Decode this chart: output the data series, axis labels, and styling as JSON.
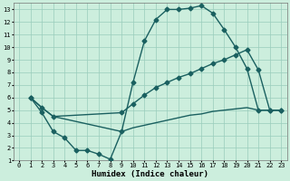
{
  "xlabel": "Humidex (Indice chaleur)",
  "background_color": "#cceedd",
  "grid_color": "#99ccbb",
  "line_color": "#1a6060",
  "xlim": [
    -0.5,
    23.5
  ],
  "ylim": [
    1,
    13.5
  ],
  "xticks": [
    0,
    1,
    2,
    3,
    4,
    5,
    6,
    7,
    8,
    9,
    10,
    11,
    12,
    13,
    14,
    15,
    16,
    17,
    18,
    19,
    20,
    21,
    22,
    23
  ],
  "yticks": [
    1,
    2,
    3,
    4,
    5,
    6,
    7,
    8,
    9,
    10,
    11,
    12,
    13
  ],
  "line1_x": [
    1,
    2,
    3,
    4,
    5,
    6,
    7,
    8,
    9,
    10,
    11,
    12,
    13,
    14,
    15,
    16,
    17,
    18,
    19,
    20,
    21,
    22,
    23
  ],
  "line1_y": [
    6.0,
    4.8,
    3.3,
    2.8,
    1.8,
    1.8,
    1.5,
    1.1,
    3.3,
    7.2,
    10.5,
    12.2,
    13.0,
    13.0,
    13.1,
    13.3,
    12.7,
    11.4,
    10.0,
    8.3,
    5.0,
    5.0,
    5.0
  ],
  "line2_x": [
    1,
    2,
    3,
    9,
    10,
    11,
    12,
    13,
    14,
    15,
    16,
    17,
    18,
    19,
    20,
    21,
    22,
    23
  ],
  "line2_y": [
    6.0,
    5.2,
    4.5,
    4.8,
    5.5,
    6.2,
    6.8,
    7.2,
    7.6,
    7.9,
    8.3,
    8.7,
    9.0,
    9.4,
    9.8,
    8.2,
    5.0,
    5.0
  ],
  "line3_x": [
    1,
    2,
    3,
    9,
    10,
    11,
    12,
    13,
    14,
    15,
    16,
    17,
    18,
    19,
    20,
    21,
    22,
    23
  ],
  "line3_y": [
    6.0,
    5.2,
    4.5,
    3.3,
    3.6,
    3.8,
    4.0,
    4.2,
    4.4,
    4.6,
    4.7,
    4.9,
    5.0,
    5.1,
    5.2,
    5.0,
    5.0,
    5.0
  ],
  "marker": "D",
  "markersize": 2.5,
  "linewidth": 1.0,
  "tick_fontsize": 5.0,
  "xlabel_fontsize": 6.5
}
